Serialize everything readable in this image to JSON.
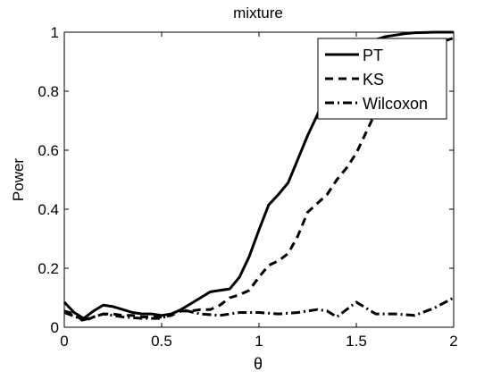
{
  "chart_data": {
    "type": "line",
    "title": "mixture",
    "xlabel": "θ",
    "ylabel": "Power",
    "xlim": [
      0,
      2
    ],
    "ylim": [
      0,
      1
    ],
    "xticks": [
      0,
      0.5,
      1,
      1.5,
      2
    ],
    "xtick_labels": [
      "0",
      "0.5",
      "1",
      "1.5",
      "2"
    ],
    "yticks": [
      0,
      0.2,
      0.4,
      0.6,
      0.8,
      1
    ],
    "ytick_labels": [
      "0",
      "0.2",
      "0.4",
      "0.6",
      "0.8",
      "1"
    ],
    "grid": false,
    "legend_position": "top-right",
    "series": [
      {
        "name": "PT",
        "style": "solid",
        "color": "#000000",
        "x": [
          0,
          0.05,
          0.1,
          0.15,
          0.2,
          0.25,
          0.3,
          0.35,
          0.4,
          0.45,
          0.5,
          0.55,
          0.6,
          0.65,
          0.7,
          0.75,
          0.8,
          0.85,
          0.9,
          0.95,
          1.0,
          1.05,
          1.1,
          1.15,
          1.2,
          1.25,
          1.3,
          1.35,
          1.4,
          1.45,
          1.5,
          1.55,
          1.6,
          1.65,
          1.7,
          1.75,
          1.8,
          1.85,
          1.9,
          1.95,
          2.0
        ],
        "values": [
          0.085,
          0.05,
          0.03,
          0.055,
          0.075,
          0.07,
          0.06,
          0.05,
          0.045,
          0.045,
          0.04,
          0.045,
          0.06,
          0.08,
          0.1,
          0.12,
          0.125,
          0.13,
          0.17,
          0.24,
          0.33,
          0.415,
          0.45,
          0.49,
          0.57,
          0.65,
          0.72,
          0.8,
          0.86,
          0.9,
          0.93,
          0.955,
          0.975,
          0.985,
          0.99,
          0.995,
          0.998,
          0.999,
          1.0,
          1.0,
          1.0
        ]
      },
      {
        "name": "KS",
        "style": "dashed",
        "color": "#000000",
        "x": [
          0,
          0.05,
          0.1,
          0.15,
          0.2,
          0.25,
          0.3,
          0.35,
          0.4,
          0.45,
          0.5,
          0.55,
          0.6,
          0.65,
          0.7,
          0.75,
          0.8,
          0.85,
          0.9,
          0.95,
          1.0,
          1.05,
          1.1,
          1.15,
          1.2,
          1.25,
          1.3,
          1.35,
          1.4,
          1.45,
          1.5,
          1.55,
          1.6,
          1.65,
          1.7,
          1.75,
          1.8,
          1.85,
          1.9,
          1.95,
          2.0
        ],
        "values": [
          0.055,
          0.045,
          0.02,
          0.035,
          0.045,
          0.045,
          0.04,
          0.04,
          0.035,
          0.035,
          0.035,
          0.04,
          0.055,
          0.055,
          0.06,
          0.06,
          0.075,
          0.1,
          0.11,
          0.125,
          0.17,
          0.21,
          0.225,
          0.25,
          0.31,
          0.39,
          0.42,
          0.45,
          0.5,
          0.54,
          0.59,
          0.66,
          0.73,
          0.8,
          0.86,
          0.9,
          0.93,
          0.95,
          0.96,
          0.97,
          0.98
        ]
      },
      {
        "name": "Wilcoxon",
        "style": "dashdot",
        "color": "#000000",
        "x": [
          0,
          0.1,
          0.2,
          0.3,
          0.4,
          0.5,
          0.6,
          0.7,
          0.8,
          0.9,
          1.0,
          1.1,
          1.2,
          1.3,
          1.35,
          1.4,
          1.45,
          1.5,
          1.6,
          1.7,
          1.8,
          1.9,
          2.0
        ],
        "values": [
          0.05,
          0.025,
          0.045,
          0.035,
          0.03,
          0.03,
          0.06,
          0.045,
          0.04,
          0.05,
          0.05,
          0.045,
          0.05,
          0.06,
          0.055,
          0.035,
          0.06,
          0.085,
          0.045,
          0.045,
          0.04,
          0.065,
          0.1
        ]
      }
    ]
  }
}
